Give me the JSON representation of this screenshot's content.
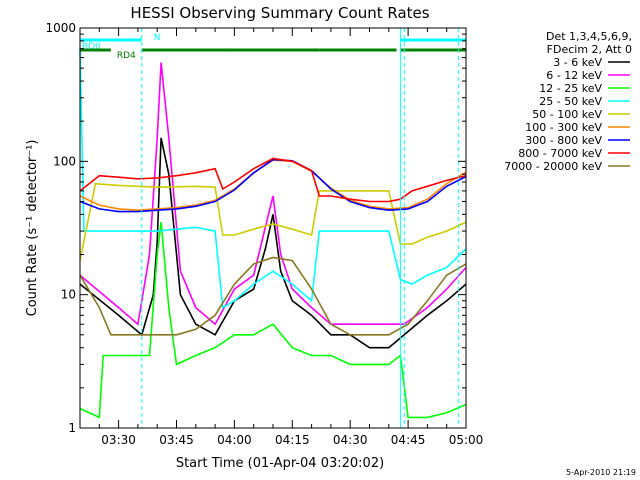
{
  "chart_data": {
    "type": "line",
    "title": "HESSI Observing Summary Count Rates",
    "xlabel": "Start Time (01-Apr-04 03:20:02)",
    "ylabel": "Count Rate (s⁻¹ detector⁻¹)",
    "yscale": "log",
    "ylim": [
      1,
      1000
    ],
    "xlim": [
      "03:20",
      "05:00"
    ],
    "x_ticks": [
      "03:30",
      "03:45",
      "04:00",
      "04:15",
      "04:30",
      "04:45",
      "05:00"
    ],
    "y_ticks": [
      "1",
      "10",
      "100",
      "1000"
    ],
    "timestamp": "5-Apr-2010 21:19",
    "legend": {
      "placement": "right",
      "header": [
        "Det 1,3,4,5,6,9,",
        "FDecim 2, Att 0"
      ]
    },
    "series": [
      {
        "name": "3 - 6 keV",
        "color": "#000000",
        "x": [
          "03:20",
          "03:30",
          "03:36",
          "03:39",
          "03:40",
          "03:41",
          "03:43",
          "03:46",
          "03:50",
          "03:55",
          "04:00",
          "04:05",
          "04:08",
          "04:10",
          "04:12",
          "04:15",
          "04:20",
          "04:25",
          "04:30",
          "04:35",
          "04:40",
          "04:44",
          "04:50",
          "04:55",
          "05:00"
        ],
        "y": [
          12,
          7,
          5,
          10,
          25,
          150,
          80,
          10,
          6,
          5,
          9,
          11,
          22,
          40,
          15,
          9,
          7,
          5,
          5,
          4,
          4,
          5,
          7,
          9,
          12
        ]
      },
      {
        "name": "6 - 12 keV",
        "color": "#ff00ff",
        "x": [
          "03:20",
          "03:30",
          "03:35",
          "03:38",
          "03:40",
          "03:41",
          "03:43",
          "03:46",
          "03:50",
          "03:55",
          "04:00",
          "04:05",
          "04:08",
          "04:10",
          "04:12",
          "04:15",
          "04:20",
          "04:25",
          "04:30",
          "04:35",
          "04:40",
          "04:44",
          "04:50",
          "04:55",
          "05:00"
        ],
        "y": [
          14,
          8,
          6,
          20,
          150,
          550,
          150,
          15,
          8,
          6,
          11,
          14,
          32,
          55,
          20,
          11,
          8,
          6,
          6,
          6,
          6,
          6,
          8,
          11,
          16
        ]
      },
      {
        "name": "12 - 25 keV",
        "color": "#00ff00",
        "x": [
          "03:20",
          "03:25",
          "03:26",
          "03:30",
          "03:38",
          "03:40",
          "03:41",
          "03:43",
          "03:45",
          "03:50",
          "03:55",
          "04:00",
          "04:05",
          "04:10",
          "04:15",
          "04:20",
          "04:25",
          "04:30",
          "04:35",
          "04:40",
          "04:43",
          "04:45",
          "04:50",
          "04:55",
          "05:00"
        ],
        "y": [
          1.4,
          1.2,
          3.5,
          3.5,
          3.5,
          20,
          35,
          8,
          3,
          3.5,
          4,
          5,
          5,
          6,
          4,
          3.5,
          3.5,
          3,
          3,
          3,
          3.5,
          1.2,
          1.2,
          1.3,
          1.5
        ]
      },
      {
        "name": "25 - 50 keV",
        "color": "#00ffff",
        "x": [
          "03:20",
          "03:21",
          "03:30",
          "03:40",
          "03:50",
          "03:55",
          "03:57",
          "04:00",
          "04:05",
          "04:10",
          "04:15",
          "04:20",
          "04:22",
          "04:30",
          "04:40",
          "04:43",
          "04:46",
          "04:50",
          "04:55",
          "05:00"
        ],
        "y": [
          700,
          30,
          30,
          30,
          32,
          30,
          8,
          9,
          12,
          15,
          12,
          9,
          30,
          30,
          30,
          13,
          12,
          14,
          16,
          22
        ]
      },
      {
        "name": "50 - 100 keV",
        "color": "#cccc00",
        "x": [
          "03:20",
          "03:24",
          "03:30",
          "03:40",
          "03:50",
          "03:55",
          "03:57",
          "04:00",
          "04:05",
          "04:10",
          "04:15",
          "04:20",
          "04:22",
          "04:30",
          "04:40",
          "04:43",
          "04:46",
          "04:50",
          "04:55",
          "05:00"
        ],
        "y": [
          18,
          68,
          66,
          64,
          65,
          64,
          28,
          28,
          31,
          34,
          31,
          28,
          60,
          60,
          60,
          24,
          24,
          27,
          30,
          35
        ]
      },
      {
        "name": "100 - 300 keV",
        "color": "#ff8800",
        "x": [
          "03:20",
          "03:25",
          "03:30",
          "03:35",
          "03:40",
          "03:45",
          "03:50",
          "03:55",
          "04:00",
          "04:05",
          "04:10",
          "04:15",
          "04:20",
          "04:25",
          "04:30",
          "04:35",
          "04:40",
          "04:45",
          "04:50",
          "04:55",
          "05:00"
        ],
        "y": [
          55,
          47,
          44,
          43,
          44,
          45,
          47,
          51,
          62,
          82,
          102,
          100,
          84,
          63,
          51,
          46,
          44,
          45,
          52,
          68,
          83
        ]
      },
      {
        "name": "300 - 800 keV",
        "color": "#0000ff",
        "x": [
          "03:20",
          "03:25",
          "03:30",
          "03:35",
          "03:40",
          "03:45",
          "03:50",
          "03:55",
          "04:00",
          "04:05",
          "04:10",
          "04:15",
          "04:20",
          "04:25",
          "04:30",
          "04:35",
          "04:40",
          "04:45",
          "04:50",
          "04:55",
          "05:00"
        ],
        "y": [
          50,
          44,
          42,
          42,
          43,
          44,
          46,
          50,
          61,
          82,
          103,
          101,
          85,
          62,
          50,
          45,
          43,
          44,
          50,
          65,
          77
        ]
      },
      {
        "name": "800 - 7000 keV",
        "color": "#ff0000",
        "x": [
          "03:20",
          "03:25",
          "03:30",
          "03:35",
          "03:40",
          "03:45",
          "03:50",
          "03:55",
          "03:57",
          "04:00",
          "04:05",
          "04:10",
          "04:15",
          "04:20",
          "04:22",
          "04:25",
          "04:30",
          "04:35",
          "04:40",
          "04:43",
          "04:46",
          "04:50",
          "04:55",
          "05:00"
        ],
        "y": [
          60,
          78,
          76,
          74,
          75,
          78,
          82,
          88,
          62,
          70,
          88,
          105,
          100,
          85,
          55,
          55,
          52,
          50,
          50,
          52,
          60,
          65,
          72,
          78
        ]
      },
      {
        "name": "7000 - 20000 keV",
        "color": "#887722",
        "x": [
          "03:20",
          "03:25",
          "03:28",
          "03:32",
          "03:35",
          "03:40",
          "03:45",
          "03:50",
          "03:55",
          "04:00",
          "04:05",
          "04:10",
          "04:15",
          "04:20",
          "04:25",
          "04:30",
          "04:35",
          "04:40",
          "04:45",
          "04:50",
          "04:55",
          "05:00"
        ],
        "y": [
          14,
          8,
          5,
          5,
          5,
          5,
          5,
          5.5,
          7,
          12,
          17,
          19,
          18,
          11,
          6,
          5,
          5,
          5,
          6,
          9,
          14,
          17
        ]
      }
    ],
    "markers": [
      {
        "label": "RD0",
        "color": "#00ffff",
        "segments": [
          [
            "03:20",
            "03:34"
          ]
        ]
      },
      {
        "label": "N",
        "color": "#00ffff",
        "segments": [
          [
            "03:34",
            "03:36"
          ],
          [
            "04:43",
            "05:00"
          ]
        ]
      },
      {
        "label": "RD4",
        "color": "#008000",
        "segments": [
          [
            "03:20",
            "03:28"
          ],
          [
            "03:36",
            "03:58"
          ],
          [
            "03:58",
            "04:22"
          ],
          [
            "04:22",
            "04:42"
          ],
          [
            "04:43",
            "05:00"
          ]
        ]
      }
    ],
    "vertical_lines": {
      "solid": [
        "03:20",
        "04:43"
      ],
      "dashed": [
        "03:36",
        "04:44",
        "04:58"
      ]
    }
  }
}
